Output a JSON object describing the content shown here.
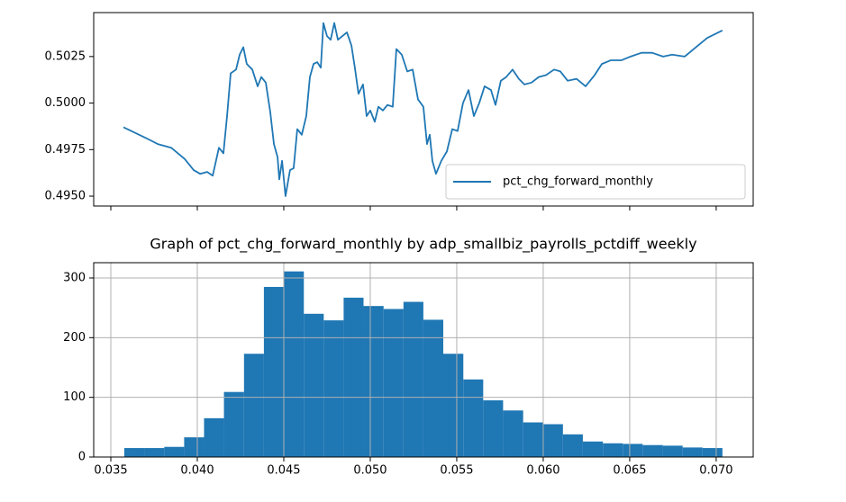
{
  "chart_data": [
    {
      "type": "line",
      "x": [
        0.03573,
        0.03641,
        0.03708,
        0.03771,
        0.03849,
        0.03927,
        0.03979,
        0.04016,
        0.04057,
        0.04089,
        0.04125,
        0.04151,
        0.04172,
        0.04193,
        0.04224,
        0.04245,
        0.04266,
        0.04286,
        0.04318,
        0.04349,
        0.0437,
        0.04396,
        0.04422,
        0.04443,
        0.04464,
        0.04474,
        0.0449,
        0.0451,
        0.04536,
        0.04557,
        0.04578,
        0.04604,
        0.0463,
        0.04651,
        0.04672,
        0.04693,
        0.04714,
        0.04729,
        0.0475,
        0.04771,
        0.04792,
        0.04813,
        0.04839,
        0.04865,
        0.04891,
        0.04911,
        0.04932,
        0.04958,
        0.04979,
        0.05,
        0.05026,
        0.05047,
        0.05073,
        0.05099,
        0.0513,
        0.05151,
        0.05182,
        0.05214,
        0.05245,
        0.05276,
        0.05307,
        0.05328,
        0.05344,
        0.05359,
        0.0538,
        0.05411,
        0.05443,
        0.05474,
        0.05505,
        0.05536,
        0.05568,
        0.05599,
        0.0563,
        0.05661,
        0.05698,
        0.05724,
        0.05755,
        0.05786,
        0.05823,
        0.05859,
        0.05891,
        0.05932,
        0.05974,
        0.06016,
        0.06063,
        0.06099,
        0.06141,
        0.06193,
        0.06245,
        0.06297,
        0.06339,
        0.06391,
        0.06453,
        0.06505,
        0.06568,
        0.0663,
        0.06693,
        0.06745,
        0.06818,
        0.0687,
        0.06948,
        0.07036
      ],
      "series": [
        {
          "name": "pct_chg_forward_monthly",
          "color": "#1f77b4",
          "values": [
            0.4987,
            0.4984,
            0.4981,
            0.4978,
            0.4976,
            0.497,
            0.4964,
            0.4962,
            0.4963,
            0.4961,
            0.4976,
            0.4973,
            0.4993,
            0.5016,
            0.5018,
            0.5026,
            0.503,
            0.5021,
            0.5018,
            0.5009,
            0.5014,
            0.5011,
            0.4995,
            0.4978,
            0.4971,
            0.4959,
            0.4969,
            0.495,
            0.4964,
            0.4965,
            0.4986,
            0.4983,
            0.4993,
            0.5014,
            0.5021,
            0.5022,
            0.5019,
            0.5043,
            0.5036,
            0.5034,
            0.5043,
            0.5034,
            0.5036,
            0.5038,
            0.5031,
            0.5019,
            0.5005,
            0.501,
            0.4993,
            0.4996,
            0.499,
            0.4998,
            0.4996,
            0.4999,
            0.4998,
            0.5029,
            0.5026,
            0.5017,
            0.5018,
            0.5002,
            0.4998,
            0.4978,
            0.4983,
            0.4969,
            0.4962,
            0.4969,
            0.4974,
            0.4986,
            0.4985,
            0.5,
            0.5007,
            0.4993,
            0.5,
            0.5009,
            0.5007,
            0.4999,
            0.5012,
            0.5014,
            0.5018,
            0.5013,
            0.501,
            0.5011,
            0.5014,
            0.5015,
            0.5018,
            0.5017,
            0.5012,
            0.5013,
            0.5009,
            0.5015,
            0.5021,
            0.5023,
            0.5023,
            0.5025,
            0.5027,
            0.5027,
            0.5025,
            0.5026,
            0.5025,
            0.5029,
            0.5035,
            0.5039
          ]
        }
      ],
      "xlim": [
        0.03401,
        0.07214
      ],
      "xticks": [
        0.035,
        0.04,
        0.045,
        0.05,
        0.055,
        0.06,
        0.065,
        0.07
      ],
      "ylim": [
        0.49447,
        0.50486
      ],
      "yticks": [
        {
          "value": 0.495,
          "label": "0.4950"
        },
        {
          "value": 0.4975,
          "label": "0.4975"
        },
        {
          "value": 0.5,
          "label": "0.5000"
        },
        {
          "value": 0.5025,
          "label": "0.5025"
        }
      ],
      "legend": "lower right",
      "grid": false
    },
    {
      "type": "histogram",
      "title": "Graph of pct_chg_forward_monthly by adp_smallbiz_payrolls_pctdiff_weekly",
      "bins": [
        0.03578,
        0.03693,
        0.03809,
        0.03924,
        0.04039,
        0.04154,
        0.0427,
        0.04385,
        0.045,
        0.04616,
        0.04731,
        0.04846,
        0.04961,
        0.05077,
        0.05192,
        0.05307,
        0.05422,
        0.05538,
        0.05653,
        0.05768,
        0.05884,
        0.05999,
        0.06114,
        0.06229,
        0.06345,
        0.0646,
        0.06575,
        0.06691,
        0.06806,
        0.06921,
        0.07036
      ],
      "values": [
        15,
        15,
        17,
        33,
        65,
        109,
        173,
        285,
        311,
        240,
        229,
        267,
        253,
        248,
        260,
        230,
        173,
        130,
        95,
        78,
        58,
        55,
        38,
        26,
        23,
        22,
        20,
        19,
        16,
        15
      ],
      "color": "#1f77b4",
      "xlim": [
        0.03401,
        0.07214
      ],
      "xticks": [
        0.035,
        {
          "value": 0.04,
          "label": "0.040"
        },
        0.045,
        {
          "value": 0.05,
          "label": "0.050"
        },
        0.055,
        {
          "value": 0.06,
          "label": "0.060"
        },
        0.065,
        {
          "value": 0.07,
          "label": "0.070"
        }
      ],
      "ylim": [
        0,
        325.6
      ],
      "yticks": [
        0,
        100,
        200,
        300
      ],
      "grid": true
    }
  ]
}
